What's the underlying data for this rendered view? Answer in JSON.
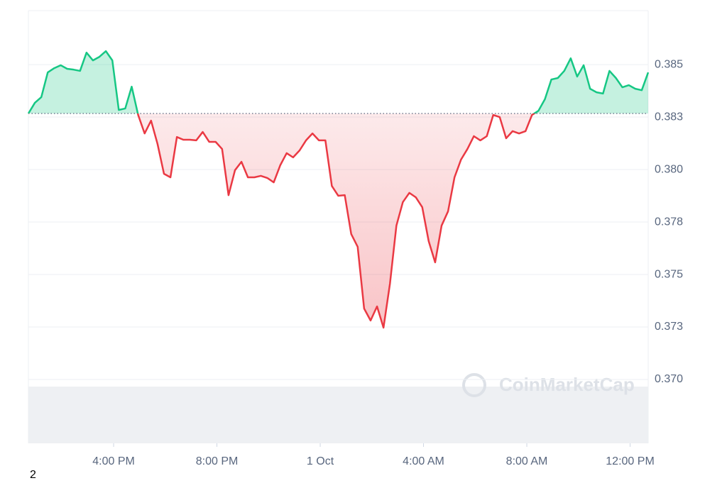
{
  "chart_data": {
    "type": "line",
    "x": [
      12.7,
      12.95,
      13.2,
      13.45,
      13.7,
      13.95,
      14.2,
      14.45,
      14.7,
      14.95,
      15.2,
      15.45,
      15.7,
      15.95,
      16.2,
      16.45,
      16.7,
      16.95,
      17.2,
      17.45,
      17.7,
      17.95,
      18.2,
      18.45,
      18.7,
      18.95,
      19.2,
      19.45,
      19.7,
      19.95,
      20.2,
      20.45,
      20.7,
      20.95,
      21.2,
      21.45,
      21.7,
      21.95,
      22.2,
      22.45,
      22.7,
      22.95,
      23.2,
      23.45,
      23.7,
      23.95,
      24.2,
      24.45,
      24.7,
      24.95,
      25.2,
      25.45,
      25.7,
      25.95,
      26.2,
      26.45,
      26.7,
      26.95,
      27.2,
      27.45,
      27.7,
      27.95,
      28.2,
      28.45,
      28.7,
      28.95,
      29.2,
      29.45,
      29.7,
      29.95,
      30.2,
      30.45,
      30.7,
      30.95,
      31.2,
      31.45,
      31.7,
      31.95,
      32.2,
      32.45,
      32.7,
      32.95,
      33.2,
      33.45,
      33.7,
      33.95,
      34.2,
      34.45,
      34.7,
      34.95,
      35.2,
      35.45,
      35.7,
      35.95,
      36.2,
      36.45,
      36.7
    ],
    "series": [
      {
        "values": [
          0.38267,
          0.38318,
          0.38345,
          0.38463,
          0.38483,
          0.38497,
          0.3848,
          0.38476,
          0.3847,
          0.38557,
          0.3852,
          0.38537,
          0.38564,
          0.3852,
          0.38284,
          0.38291,
          0.38395,
          0.3826,
          0.38172,
          0.38233,
          0.38122,
          0.3798,
          0.37963,
          0.38155,
          0.38142,
          0.38142,
          0.38139,
          0.38179,
          0.38132,
          0.38132,
          0.38098,
          0.37878,
          0.37997,
          0.38037,
          0.37963,
          0.37963,
          0.3797,
          0.3796,
          0.37939,
          0.3802,
          0.38078,
          0.38058,
          0.38091,
          0.38139,
          0.38172,
          0.38139,
          0.38139,
          0.37922,
          0.37875,
          0.37878,
          0.37693,
          0.37632,
          0.37338,
          0.37281,
          0.37348,
          0.37247,
          0.37456,
          0.37733,
          0.37845,
          0.37889,
          0.37868,
          0.37821,
          0.37659,
          0.37558,
          0.37733,
          0.37801,
          0.37963,
          0.38047,
          0.38098,
          0.38159,
          0.38139,
          0.38159,
          0.3826,
          0.3825,
          0.38149,
          0.38183,
          0.38172,
          0.38183,
          0.3826,
          0.3828,
          0.38335,
          0.38429,
          0.38436,
          0.3847,
          0.3853,
          0.38443,
          0.38497,
          0.38385,
          0.38368,
          0.38362,
          0.3847,
          0.38436,
          0.38392,
          0.38402,
          0.38385,
          0.38378,
          0.38463
        ]
      }
    ],
    "baseline": 0.38267,
    "up_color": "#16c784",
    "down_color": "#ea3943",
    "xlim": [
      12.7,
      36.7
    ],
    "xticks": [
      {
        "value": 16,
        "label": "4:00 PM"
      },
      {
        "value": 20,
        "label": "8:00 PM"
      },
      {
        "value": 24,
        "label": "1 Oct"
      },
      {
        "value": 28,
        "label": "4:00 AM"
      },
      {
        "value": 32,
        "label": "8:00 AM"
      },
      {
        "value": 36,
        "label": "12:00 PM"
      }
    ],
    "ylim": [
      0.36696,
      0.38757
    ],
    "yticks": [
      {
        "value": 0.37,
        "label": "0.370"
      },
      {
        "value": 0.3725,
        "label": "0.373"
      },
      0.375,
      {
        "value": 0.3775,
        "label": "0.378"
      },
      {
        "value": 0.38,
        "label": "0.380"
      },
      {
        "value": 0.3825,
        "label": "0.383"
      },
      0.385
    ],
    "grid": true,
    "watermark": "CoinMarketCap"
  },
  "footer": "2"
}
